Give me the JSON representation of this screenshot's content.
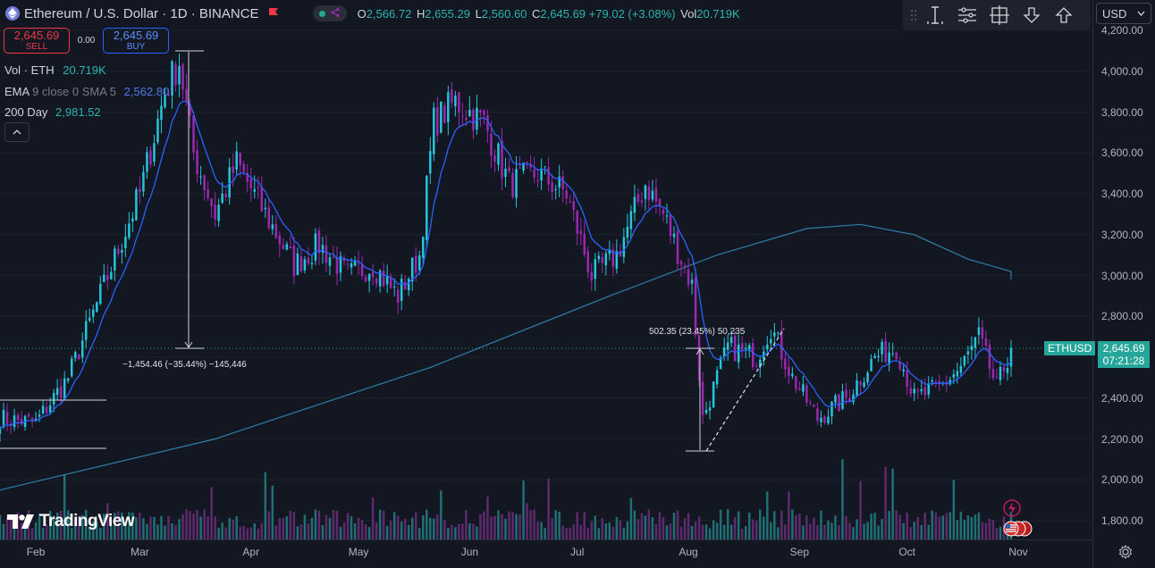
{
  "header": {
    "symbol_title": "Ethereum / U.S. Dollar · 1D · BINANCE",
    "open_key": "O",
    "open": "2,566.72",
    "high_key": "H",
    "high": "2,655.29",
    "low_key": "L",
    "low": "2,560.60",
    "close_key": "C",
    "close": "2,645.69",
    "change": "+79.02 (+3.08%)",
    "vol_key": "Vol",
    "vol": "20.719K"
  },
  "trade": {
    "sell_price": "2,645.69",
    "sell_label": "SELL",
    "spread": "0.00",
    "buy_price": "2,645.69",
    "buy_label": "BUY"
  },
  "indicators": {
    "vol_label": "Vol · ETH",
    "vol_value": "20.719K",
    "ema_label": "EMA",
    "ema_params": "9 close 0 SMA 5",
    "ema_value": "2,562.80",
    "day200_label": "200 Day",
    "day200_value": "2,981.52"
  },
  "toolbar": {
    "icons": [
      "drag-handle-icon",
      "text-cursor-icon",
      "settings-sliders-icon",
      "crosshair-icon",
      "arrow-down-icon",
      "arrow-up-icon"
    ]
  },
  "currency": {
    "value": "USD"
  },
  "price_axis": {
    "labels": [
      "4,200.00",
      "4,000.00",
      "3,800.00",
      "3,600.00",
      "3,400.00",
      "3,200.00",
      "3,000.00",
      "2,800.00",
      "2,600.00",
      "2,400.00",
      "2,200.00",
      "2,000.00",
      "1,800.00"
    ],
    "ticker_tag": "ETHUSD",
    "last_price": "2,645.69",
    "countdown": "07:21:28"
  },
  "time_axis": {
    "months": [
      "Feb",
      "Mar",
      "Apr",
      "May",
      "Jun",
      "Jul",
      "Aug",
      "Sep",
      "Oct",
      "Nov"
    ]
  },
  "measurements": {
    "down_label": "−1,454.46 (−35.44%) −145,446",
    "up_label": "502.35 (23.45%) 50,235"
  },
  "branding": {
    "logo_text": "TradingView"
  },
  "colors": {
    "background": "#131722",
    "bull": "#26c6da",
    "bear": "#9c27b0",
    "ema": "#2962ff",
    "ma200": "#2f7fa8",
    "sell": "#f23645",
    "buy": "#2962ff",
    "last_price": "#26a69a"
  },
  "chart_data": {
    "type": "candlestick",
    "title": "Ethereum / U.S. Dollar · 1D · BINANCE",
    "x_range": [
      "2024-01-22",
      "2024-10-30"
    ],
    "y_range": [
      1740,
      4240
    ],
    "y_ticks": [
      1800,
      2000,
      2200,
      2400,
      2600,
      2800,
      3000,
      3200,
      3400,
      3600,
      3800,
      4000,
      4200
    ],
    "x_ticks": [
      "Feb",
      "Mar",
      "Apr",
      "May",
      "Jun",
      "Jul",
      "Aug",
      "Sep",
      "Oct",
      "Nov"
    ],
    "close_series_approx": [
      [
        "2024-01-22",
        2300
      ],
      [
        "2024-02-01",
        2280
      ],
      [
        "2024-02-10",
        2500
      ],
      [
        "2024-02-20",
        2950
      ],
      [
        "2024-03-01",
        3400
      ],
      [
        "2024-03-08",
        3900
      ],
      [
        "2024-03-12",
        4050
      ],
      [
        "2024-03-16",
        3600
      ],
      [
        "2024-03-22",
        3300
      ],
      [
        "2024-03-28",
        3550
      ],
      [
        "2024-04-05",
        3300
      ],
      [
        "2024-04-13",
        3050
      ],
      [
        "2024-04-20",
        3150
      ],
      [
        "2024-04-28",
        3000
      ],
      [
        "2024-05-05",
        3050
      ],
      [
        "2024-05-12",
        2900
      ],
      [
        "2024-05-18",
        3100
      ],
      [
        "2024-05-22",
        3750
      ],
      [
        "2024-05-28",
        3850
      ],
      [
        "2024-06-05",
        3750
      ],
      [
        "2024-06-12",
        3450
      ],
      [
        "2024-06-20",
        3500
      ],
      [
        "2024-06-28",
        3400
      ],
      [
        "2024-07-05",
        3000
      ],
      [
        "2024-07-12",
        3100
      ],
      [
        "2024-07-20",
        3450
      ],
      [
        "2024-07-25",
        3300
      ],
      [
        "2024-08-02",
        2950
      ],
      [
        "2024-08-05",
        2300
      ],
      [
        "2024-08-12",
        2650
      ],
      [
        "2024-08-20",
        2600
      ],
      [
        "2024-08-24",
        2750
      ],
      [
        "2024-08-30",
        2500
      ],
      [
        "2024-09-06",
        2300
      ],
      [
        "2024-09-14",
        2400
      ],
      [
        "2024-09-22",
        2600
      ],
      [
        "2024-09-28",
        2650
      ],
      [
        "2024-10-03",
        2400
      ],
      [
        "2024-10-10",
        2450
      ],
      [
        "2024-10-16",
        2550
      ],
      [
        "2024-10-21",
        2700
      ],
      [
        "2024-10-26",
        2450
      ],
      [
        "2024-10-30",
        2645.69
      ]
    ],
    "ema_last": 2562.8,
    "ma200_last": 2981.52,
    "volume_unit": "ETH",
    "volume_last": "20.719K",
    "measure_down": {
      "from": 4104,
      "to": 2650,
      "change": -1454.46,
      "percent": -35.44
    },
    "measure_up": {
      "from": 2142,
      "to": 2644,
      "change": 502.35,
      "percent": 23.45
    }
  }
}
